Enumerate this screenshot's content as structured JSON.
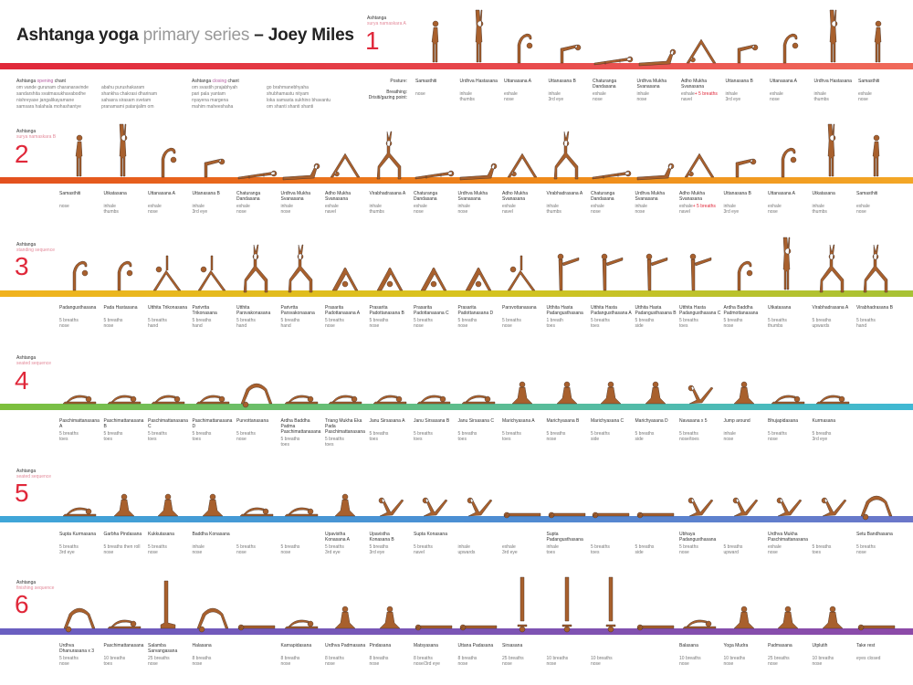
{
  "title": {
    "prefix": "Ashtanga yoga",
    "middle": " primary series",
    "suffix": " – Joey Miles"
  },
  "opening_chant": {
    "title_prefix": "Ashtanga ",
    "title_accent": "opening",
    "title_suffix": " chant",
    "col1": [
      "om    vande gurunam charanaravinde",
      "sandarshita svatmasukhavabodhe",
      "nishreyase jangalikayamane",
      "samsara halahala mohashantye"
    ],
    "col2": [
      "abahu purushakaram",
      "shankha chakrasi dharinam",
      "sahasra sirasam svetam",
      "pranamami patanjalim    om"
    ]
  },
  "closing_chant": {
    "title_prefix": "Ashtanga ",
    "title_accent": "closing",
    "title_suffix": " chant",
    "col1": [
      "om    svastih prajabhyah",
      "pari pala yantam",
      "nyayena margena",
      "mahim maheeshaha"
    ],
    "col2": [
      "go brahmanebhyaha",
      "shubhamastu nityam",
      "loka samasta sukhino bhavantu",
      "om    shanti shanti shanti"
    ]
  },
  "row1_legend": {
    "posture": "Posture:",
    "breathing": "Breathing:",
    "drishti": "Drisiti/gazing point:"
  },
  "sections": [
    {
      "label": "Ashtanga",
      "sub": "surya namaskara A",
      "num": "1",
      "poses": [
        {
          "name": "Samasthiti",
          "breath": "",
          "drishti": "nose"
        },
        {
          "name": "Urdhva Hastasana",
          "breath": "inhale",
          "drishti": "thumbs"
        },
        {
          "name": "Uttanasana A",
          "breath": "exhale",
          "drishti": "nose"
        },
        {
          "name": "Uttanasana B",
          "breath": "inhale",
          "drishti": "3rd eye"
        },
        {
          "name": "Chaturanga Dandasana",
          "breath": "exhale",
          "drishti": "nose"
        },
        {
          "name": "Urdhva Mukha Svanasana",
          "breath": "inhale",
          "drishti": "nose"
        },
        {
          "name": "Adho Mukha Svanasana",
          "breath": "exhale",
          "breath_hl": "+ 5 breaths",
          "drishti": "navel"
        },
        {
          "name": "Uttanasana B",
          "breath": "inhale",
          "drishti": "3rd eye"
        },
        {
          "name": "Uttanasana A",
          "breath": "exhale",
          "drishti": "nose"
        },
        {
          "name": "Urdhva Hastasana",
          "breath": "inhale",
          "drishti": "thumbs"
        },
        {
          "name": "Samasthiti",
          "breath": "exhale",
          "drishti": "nose"
        }
      ]
    },
    {
      "label": "Ashtanga",
      "sub": "surya namaskara B",
      "num": "2",
      "poses": [
        {
          "name": "Samasthiti",
          "breath": "",
          "drishti": "nose"
        },
        {
          "name": "Utkatasana",
          "breath": "inhale",
          "drishti": "thumbs"
        },
        {
          "name": "Uttanasana A",
          "breath": "exhale",
          "drishti": "nose"
        },
        {
          "name": "Uttanasana B",
          "breath": "inhale",
          "drishti": "3rd eye"
        },
        {
          "name": "Chaturanga Dandasana",
          "breath": "exhale",
          "drishti": "nose"
        },
        {
          "name": "Urdhva Mukha Svanasana",
          "breath": "inhale",
          "drishti": "nose"
        },
        {
          "name": "Adho Mukha Svanasana",
          "breath": "exhale",
          "drishti": "navel"
        },
        {
          "name": "Virabhadrasana A",
          "breath": "inhale",
          "drishti": "thumbs"
        },
        {
          "name": "Chaturanga Dandasana",
          "breath": "exhale",
          "drishti": "nose"
        },
        {
          "name": "Urdhva Mukha Svanasana",
          "breath": "inhale",
          "drishti": "nose"
        },
        {
          "name": "Adho Mukha Svanasana",
          "breath": "exhale",
          "drishti": "navel"
        },
        {
          "name": "Virabhadrasana A",
          "breath": "inhale",
          "drishti": "thumbs"
        },
        {
          "name": "Chaturanga Dandasana",
          "breath": "exhale",
          "drishti": "nose"
        },
        {
          "name": "Urdhva Mukha Svanasana",
          "breath": "inhale",
          "drishti": "nose"
        },
        {
          "name": "Adho Mukha Svanasana",
          "breath": "exhale",
          "breath_hl": "+ 5 breaths",
          "drishti": "navel"
        },
        {
          "name": "Uttanasana B",
          "breath": "inhale",
          "drishti": "3rd eye"
        },
        {
          "name": "Uttanasana A",
          "breath": "exhale",
          "drishti": "nose"
        },
        {
          "name": "Utkatasana",
          "breath": "inhale",
          "drishti": "thumbs"
        },
        {
          "name": "Samasthiti",
          "breath": "exhale",
          "drishti": "nose"
        }
      ]
    },
    {
      "label": "Ashtanga",
      "sub": "standing sequence",
      "num": "3",
      "poses": [
        {
          "name": "Padangusthasana",
          "breath": "5 breaths",
          "drishti": "nose"
        },
        {
          "name": "Pada Hastasana",
          "breath": "5 breaths",
          "drishti": "nose"
        },
        {
          "name": "Utthita Trikonasana",
          "breath": "5 breaths",
          "drishti": "hand"
        },
        {
          "name": "Parivrtta Trikonasana",
          "breath": "5 breaths",
          "drishti": "hand"
        },
        {
          "name": "Utthita Parsvakonasana",
          "breath": "5 breaths",
          "drishti": "hand"
        },
        {
          "name": "Parivrtta Parsvakonasana",
          "breath": "5 breaths",
          "drishti": "hand"
        },
        {
          "name": "Prasarita Padottanasana A",
          "breath": "5 breaths",
          "drishti": "nose"
        },
        {
          "name": "Prasarita Padottanasana B",
          "breath": "5 breaths",
          "drishti": "nose"
        },
        {
          "name": "Prasarita Padottanasana C",
          "breath": "5 breaths",
          "drishti": "nose"
        },
        {
          "name": "Prasarita Padottanasana D",
          "breath": "5 breaths",
          "drishti": "nose"
        },
        {
          "name": "Parsvottanasana",
          "breath": "5 breaths",
          "drishti": "nose"
        },
        {
          "name": "Utthita Hasta Padangusthasana",
          "breath": "1 breath",
          "drishti": "toes"
        },
        {
          "name": "Utthita Hasta Padangusthasana A",
          "breath": "5 breaths",
          "drishti": "toes"
        },
        {
          "name": "Utthita Hasta Padangusthasana B",
          "breath": "5 breaths",
          "drishti": "side"
        },
        {
          "name": "Utthita Hasta Padangusthasana C",
          "breath": "5 breaths",
          "drishti": "toes"
        },
        {
          "name": "Ardha Baddha Padmottanasana",
          "breath": "5 breaths",
          "drishti": "nose"
        },
        {
          "name": "Utkatasana",
          "breath": "5 breaths",
          "drishti": "thumbs"
        },
        {
          "name": "Virabhadrasana A",
          "breath": "5 breaths",
          "drishti": "upwards"
        },
        {
          "name": "Virabhadrasana B",
          "breath": "5 breaths",
          "drishti": "hand"
        }
      ]
    },
    {
      "label": "Ashtanga",
      "sub": "seated sequence",
      "num": "4",
      "poses": [
        {
          "name": "Paschimattanasana A",
          "breath": "5 breaths",
          "drishti": "toes"
        },
        {
          "name": "Paschimattanasana B",
          "breath": "5 breaths",
          "drishti": "toes"
        },
        {
          "name": "Paschimattanasana C",
          "breath": "5 breaths",
          "drishti": "toes"
        },
        {
          "name": "Paschimattanasana D",
          "breath": "5 breaths",
          "drishti": "toes"
        },
        {
          "name": "Purvottanasana",
          "breath": "5 breaths",
          "drishti": "nose"
        },
        {
          "name": "Ardha Baddha Padma Paschimattanasana",
          "breath": "5 breaths",
          "drishti": "toes"
        },
        {
          "name": "Triang Mukha Eka Pada Paschimattanasana",
          "breath": "5 breaths",
          "drishti": "toes"
        },
        {
          "name": "Janu Sirsasana A",
          "breath": "5 breaths",
          "drishti": "toes"
        },
        {
          "name": "Janu Sirsasana B",
          "breath": "5 breaths",
          "drishti": "toes"
        },
        {
          "name": "Janu Sirsasana C",
          "breath": "5 breaths",
          "drishti": "toes"
        },
        {
          "name": "Marichyasana A",
          "breath": "5 breaths",
          "drishti": "toes"
        },
        {
          "name": "Marichyasana B",
          "breath": "5 breaths",
          "drishti": "nose"
        },
        {
          "name": "Marichyasana C",
          "breath": "5 breaths",
          "drishti": "side"
        },
        {
          "name": "Marichyasana D",
          "breath": "5 breaths",
          "drishti": "side"
        },
        {
          "name": "Navasana x 5",
          "breath": "5 breaths",
          "drishti": "nose/toes"
        },
        {
          "name": "Jump around",
          "breath": "inhale",
          "drishti": "nose"
        },
        {
          "name": "Bhujapidasana",
          "breath": "5 breaths",
          "drishti": "nose"
        },
        {
          "name": "Kurmasana",
          "breath": "5 breaths",
          "drishti": "3rd eye"
        }
      ]
    },
    {
      "label": "Ashtanga",
      "sub": "seated sequence",
      "num": "5",
      "poses": [
        {
          "name": "Supta Kurmasana",
          "breath": "5 breaths",
          "drishti": "3rd eye"
        },
        {
          "name": "Garbha Pindasana",
          "breath": "5 breaths then roll",
          "drishti": "nose"
        },
        {
          "name": "Kukkutasana",
          "breath": "5 breaths",
          "drishti": "nose"
        },
        {
          "name": "Baddha Konasana",
          "breath": "inhale",
          "drishti": "nose"
        },
        {
          "name": "",
          "breath": "5 breaths",
          "drishti": "nose"
        },
        {
          "name": "",
          "breath": "5 breaths",
          "drishti": "nose"
        },
        {
          "name": "Upavistha Konasana A",
          "breath": "5 breaths",
          "drishti": "3rd eye"
        },
        {
          "name": "Upavistha Konasana B",
          "breath": "5 breaths",
          "drishti": "3rd eye"
        },
        {
          "name": "Supta Konasana",
          "breath": "5 breaths",
          "drishti": "navel"
        },
        {
          "name": "",
          "breath": "inhale",
          "drishti": "upwards"
        },
        {
          "name": "",
          "breath": "exhale",
          "drishti": "3rd eye"
        },
        {
          "name": "Supta Padangusthasana",
          "breath": "inhale",
          "drishti": "toes"
        },
        {
          "name": "",
          "breath": "5 breaths",
          "drishti": "toes"
        },
        {
          "name": "",
          "breath": "5 breaths",
          "drishti": "side"
        },
        {
          "name": "Ubhaya Padangusthasana",
          "breath": "5 breaths",
          "drishti": "nose"
        },
        {
          "name": "",
          "breath": "5 breaths",
          "drishti": "upward"
        },
        {
          "name": "Urdhva Mukha Paschimattanasana",
          "breath": "exhale",
          "drishti": "nose"
        },
        {
          "name": "",
          "breath": "5 breaths",
          "drishti": "toes"
        },
        {
          "name": "Setu Bandhasana",
          "breath": "5 breaths",
          "drishti": "nose"
        }
      ]
    },
    {
      "label": "Ashtanga",
      "sub": "finishing sequence",
      "num": "6",
      "poses": [
        {
          "name": "Urdhva Dhanurasana x 3",
          "breath": "5 breaths",
          "drishti": "nose"
        },
        {
          "name": "Paschimattanasana",
          "breath": "10 breaths",
          "drishti": "toes"
        },
        {
          "name": "Salamba Sarvangasana",
          "breath": "25 breaths",
          "drishti": "nose"
        },
        {
          "name": "Halasana",
          "breath": "8 breaths",
          "drishti": "nose"
        },
        {
          "name": "",
          "breath": "",
          "drishti": ""
        },
        {
          "name": "Karnapidasana",
          "breath": "8 breaths",
          "drishti": "nose"
        },
        {
          "name": "Urdhva Padmasana",
          "breath": "8 breaths",
          "drishti": "nose"
        },
        {
          "name": "Pindasana",
          "breath": "8 breaths",
          "drishti": "nose"
        },
        {
          "name": "Matsyasana",
          "breath": "8 breaths",
          "drishti": "nose/3rd eye"
        },
        {
          "name": "Uttana Padasana",
          "breath": "8 breaths",
          "drishti": "nose"
        },
        {
          "name": "Sirsasana",
          "breath": "25 breaths",
          "drishti": "nose"
        },
        {
          "name": "",
          "breath": "10 breaths",
          "drishti": "nose"
        },
        {
          "name": "",
          "breath": "10 breaths",
          "drishti": "nose"
        },
        {
          "name": "",
          "breath": "",
          "drishti": ""
        },
        {
          "name": "Balasana",
          "breath": "10 breaths",
          "drishti": "nose"
        },
        {
          "name": "Yoga Mudra",
          "breath": "10 breaths",
          "drishti": "nose"
        },
        {
          "name": "Padmasana",
          "breath": "25 breaths",
          "drishti": "nose"
        },
        {
          "name": "Utplutih",
          "breath": "10 breaths",
          "drishti": "nose"
        },
        {
          "name": "Take rest",
          "breath": "",
          "drishti": "eyes closed"
        }
      ]
    }
  ],
  "colors": {
    "figure": "#a8602d",
    "figure_dark": "#3b2a22",
    "num_red": "#e0283a"
  }
}
